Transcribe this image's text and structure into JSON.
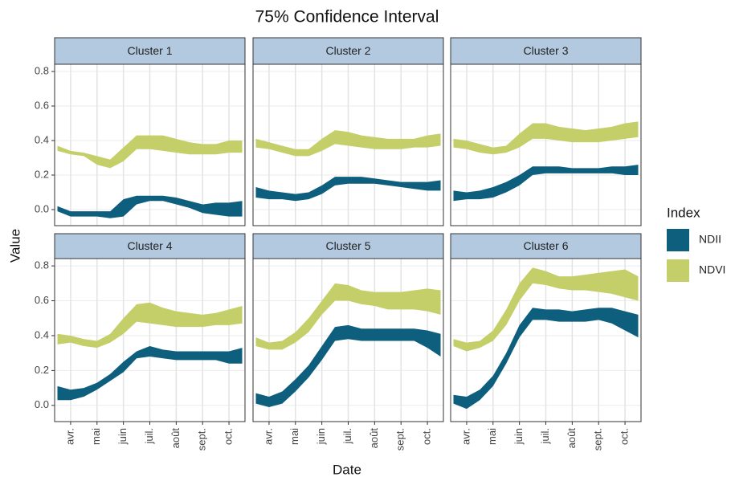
{
  "title": "75% Confidence Interval",
  "x_label": "Date",
  "y_label": "Value",
  "legend_title": "Index",
  "chart_data": [
    {
      "type": "ribbon",
      "title": "Cluster 1",
      "categories": [
        null,
        "avr.",
        null,
        "mai",
        null,
        "juin",
        null,
        "juil.",
        null,
        "août",
        null,
        "sept.",
        null,
        "oct.",
        null
      ],
      "ylim": [
        -0.093,
        0.842
      ],
      "yticks": [
        {
          "value": 0,
          "label": "0.0"
        },
        0.2,
        0.4,
        0.6,
        0.8
      ],
      "grid": true,
      "series": [
        {
          "name": "NDII",
          "color": "#0e5f7e",
          "lower": [
            -0.01,
            -0.04,
            -0.04,
            -0.04,
            -0.05,
            -0.04,
            0.03,
            0.05,
            0.05,
            0.03,
            0.01,
            -0.02,
            -0.03,
            -0.04,
            -0.04
          ],
          "upper": [
            0.02,
            -0.01,
            -0.01,
            -0.01,
            -0.01,
            0.06,
            0.08,
            0.08,
            0.08,
            0.07,
            0.05,
            0.03,
            0.04,
            0.04,
            0.05
          ]
        },
        {
          "name": "NDVI",
          "color": "#c5cf6a",
          "lower": [
            0.34,
            0.32,
            0.31,
            0.26,
            0.24,
            0.28,
            0.35,
            0.35,
            0.34,
            0.33,
            0.32,
            0.32,
            0.32,
            0.33,
            0.33
          ],
          "upper": [
            0.37,
            0.34,
            0.33,
            0.31,
            0.29,
            0.36,
            0.43,
            0.43,
            0.43,
            0.41,
            0.39,
            0.38,
            0.38,
            0.4,
            0.4
          ]
        }
      ]
    },
    {
      "type": "ribbon",
      "title": "Cluster 2",
      "categories": [
        null,
        "avr.",
        null,
        "mai",
        null,
        "juin",
        null,
        "juil.",
        null,
        "août",
        null,
        "sept.",
        null,
        "oct.",
        null
      ],
      "ylim": [
        -0.093,
        0.842
      ],
      "yticks": [
        {
          "value": 0,
          "label": "0.0"
        },
        0.2,
        0.4,
        0.6,
        0.8
      ],
      "grid": true,
      "series": [
        {
          "name": "NDII",
          "color": "#0e5f7e",
          "lower": [
            0.07,
            0.06,
            0.06,
            0.05,
            0.06,
            0.09,
            0.14,
            0.15,
            0.15,
            0.15,
            0.14,
            0.13,
            0.12,
            0.11,
            0.11
          ],
          "upper": [
            0.13,
            0.11,
            0.1,
            0.09,
            0.1,
            0.14,
            0.19,
            0.19,
            0.19,
            0.18,
            0.17,
            0.16,
            0.16,
            0.16,
            0.17
          ]
        },
        {
          "name": "NDVI",
          "color": "#c5cf6a",
          "lower": [
            0.36,
            0.35,
            0.33,
            0.31,
            0.31,
            0.34,
            0.38,
            0.37,
            0.36,
            0.35,
            0.35,
            0.35,
            0.36,
            0.36,
            0.37
          ],
          "upper": [
            0.41,
            0.39,
            0.37,
            0.35,
            0.35,
            0.41,
            0.46,
            0.45,
            0.43,
            0.42,
            0.41,
            0.41,
            0.41,
            0.43,
            0.44
          ]
        }
      ]
    },
    {
      "type": "ribbon",
      "title": "Cluster 3",
      "categories": [
        null,
        "avr.",
        null,
        "mai",
        null,
        "juin",
        null,
        "juil.",
        null,
        "août",
        null,
        "sept.",
        null,
        "oct.",
        null
      ],
      "ylim": [
        -0.093,
        0.842
      ],
      "yticks": [
        {
          "value": 0,
          "label": "0.0"
        },
        0.2,
        0.4,
        0.6,
        0.8
      ],
      "grid": true,
      "series": [
        {
          "name": "NDII",
          "color": "#0e5f7e",
          "lower": [
            0.05,
            0.06,
            0.06,
            0.07,
            0.1,
            0.14,
            0.2,
            0.21,
            0.21,
            0.21,
            0.21,
            0.21,
            0.21,
            0.2,
            0.2
          ],
          "upper": [
            0.11,
            0.1,
            0.11,
            0.13,
            0.16,
            0.2,
            0.25,
            0.25,
            0.25,
            0.24,
            0.24,
            0.24,
            0.25,
            0.25,
            0.26
          ]
        },
        {
          "name": "NDVI",
          "color": "#c5cf6a",
          "lower": [
            0.36,
            0.35,
            0.33,
            0.32,
            0.33,
            0.36,
            0.41,
            0.41,
            0.4,
            0.39,
            0.39,
            0.39,
            0.4,
            0.41,
            0.42
          ],
          "upper": [
            0.41,
            0.4,
            0.38,
            0.36,
            0.37,
            0.44,
            0.5,
            0.5,
            0.48,
            0.47,
            0.46,
            0.47,
            0.48,
            0.5,
            0.51
          ]
        }
      ]
    },
    {
      "type": "ribbon",
      "title": "Cluster 4",
      "categories": [
        null,
        "avr.",
        null,
        "mai",
        null,
        "juin",
        null,
        "juil.",
        null,
        "août",
        null,
        "sept.",
        null,
        "oct.",
        null
      ],
      "ylim": [
        -0.093,
        0.842
      ],
      "yticks": [
        {
          "value": 0,
          "label": "0.0"
        },
        0.2,
        0.4,
        0.6,
        0.8
      ],
      "grid": true,
      "series": [
        {
          "name": "NDII",
          "color": "#0e5f7e",
          "lower": [
            0.03,
            0.03,
            0.05,
            0.09,
            0.14,
            0.19,
            0.27,
            0.28,
            0.27,
            0.26,
            0.26,
            0.26,
            0.26,
            0.24,
            0.24
          ],
          "upper": [
            0.11,
            0.09,
            0.1,
            0.13,
            0.18,
            0.25,
            0.31,
            0.34,
            0.32,
            0.31,
            0.31,
            0.31,
            0.31,
            0.31,
            0.33
          ]
        },
        {
          "name": "NDVI",
          "color": "#c5cf6a",
          "lower": [
            0.35,
            0.36,
            0.34,
            0.33,
            0.36,
            0.41,
            0.48,
            0.47,
            0.46,
            0.45,
            0.45,
            0.45,
            0.46,
            0.46,
            0.47
          ],
          "upper": [
            0.41,
            0.4,
            0.38,
            0.37,
            0.41,
            0.5,
            0.58,
            0.59,
            0.56,
            0.54,
            0.53,
            0.52,
            0.53,
            0.55,
            0.57
          ]
        }
      ]
    },
    {
      "type": "ribbon",
      "title": "Cluster 5",
      "categories": [
        null,
        "avr.",
        null,
        "mai",
        null,
        "juin",
        null,
        "juil.",
        null,
        "août",
        null,
        "sept.",
        null,
        "oct.",
        null
      ],
      "ylim": [
        -0.093,
        0.842
      ],
      "yticks": [
        {
          "value": 0,
          "label": "0.0"
        },
        0.2,
        0.4,
        0.6,
        0.8
      ],
      "grid": true,
      "series": [
        {
          "name": "NDII",
          "color": "#0e5f7e",
          "lower": [
            0.01,
            -0.01,
            0.01,
            0.08,
            0.16,
            0.26,
            0.37,
            0.38,
            0.37,
            0.37,
            0.37,
            0.37,
            0.37,
            0.33,
            0.28
          ],
          "upper": [
            0.07,
            0.05,
            0.08,
            0.15,
            0.23,
            0.34,
            0.45,
            0.46,
            0.44,
            0.44,
            0.44,
            0.44,
            0.44,
            0.43,
            0.41
          ]
        },
        {
          "name": "NDVI",
          "color": "#c5cf6a",
          "lower": [
            0.34,
            0.32,
            0.32,
            0.36,
            0.42,
            0.52,
            0.6,
            0.6,
            0.58,
            0.57,
            0.55,
            0.55,
            0.55,
            0.54,
            0.52
          ],
          "upper": [
            0.39,
            0.36,
            0.37,
            0.42,
            0.5,
            0.6,
            0.7,
            0.69,
            0.66,
            0.65,
            0.65,
            0.65,
            0.66,
            0.67,
            0.66
          ]
        }
      ]
    },
    {
      "type": "ribbon",
      "title": "Cluster 6",
      "categories": [
        null,
        "avr.",
        null,
        "mai",
        null,
        "juin",
        null,
        "juil.",
        null,
        "août",
        null,
        "sept.",
        null,
        "oct.",
        null
      ],
      "ylim": [
        -0.093,
        0.842
      ],
      "yticks": [
        {
          "value": 0,
          "label": "0.0"
        },
        0.2,
        0.4,
        0.6,
        0.8
      ],
      "grid": true,
      "series": [
        {
          "name": "NDII",
          "color": "#0e5f7e",
          "lower": [
            0.01,
            -0.02,
            0.03,
            0.11,
            0.24,
            0.39,
            0.49,
            0.49,
            0.48,
            0.48,
            0.48,
            0.49,
            0.47,
            0.43,
            0.39
          ],
          "upper": [
            0.06,
            0.05,
            0.09,
            0.17,
            0.3,
            0.46,
            0.56,
            0.55,
            0.55,
            0.54,
            0.55,
            0.56,
            0.56,
            0.54,
            0.52
          ]
        },
        {
          "name": "NDVI",
          "color": "#c5cf6a",
          "lower": [
            0.34,
            0.31,
            0.33,
            0.37,
            0.46,
            0.6,
            0.7,
            0.69,
            0.67,
            0.66,
            0.66,
            0.65,
            0.64,
            0.62,
            0.6
          ],
          "upper": [
            0.38,
            0.36,
            0.37,
            0.43,
            0.55,
            0.7,
            0.79,
            0.77,
            0.74,
            0.74,
            0.75,
            0.76,
            0.77,
            0.78,
            0.74
          ]
        }
      ]
    }
  ]
}
